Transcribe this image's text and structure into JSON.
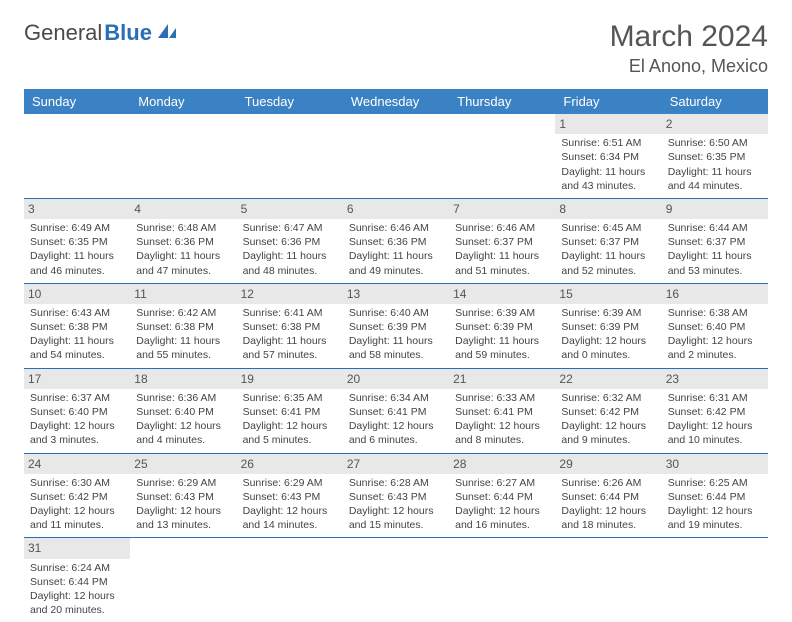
{
  "logo": {
    "general": "General",
    "blue": "Blue"
  },
  "title": "March 2024",
  "location": "El Anono, Mexico",
  "colors": {
    "header_bg": "#3b82c4",
    "header_text": "#ffffff",
    "border": "#2a6fb5",
    "daynum_bg": "#e8e8e8",
    "text": "#444444",
    "logo_gray": "#4a4a4a",
    "logo_blue": "#2a6fb5"
  },
  "weekdays": [
    "Sunday",
    "Monday",
    "Tuesday",
    "Wednesday",
    "Thursday",
    "Friday",
    "Saturday"
  ],
  "weeks": [
    [
      null,
      null,
      null,
      null,
      null,
      {
        "n": "1",
        "sr": "Sunrise: 6:51 AM",
        "ss": "Sunset: 6:34 PM",
        "dl": "Daylight: 11 hours and 43 minutes."
      },
      {
        "n": "2",
        "sr": "Sunrise: 6:50 AM",
        "ss": "Sunset: 6:35 PM",
        "dl": "Daylight: 11 hours and 44 minutes."
      }
    ],
    [
      {
        "n": "3",
        "sr": "Sunrise: 6:49 AM",
        "ss": "Sunset: 6:35 PM",
        "dl": "Daylight: 11 hours and 46 minutes."
      },
      {
        "n": "4",
        "sr": "Sunrise: 6:48 AM",
        "ss": "Sunset: 6:36 PM",
        "dl": "Daylight: 11 hours and 47 minutes."
      },
      {
        "n": "5",
        "sr": "Sunrise: 6:47 AM",
        "ss": "Sunset: 6:36 PM",
        "dl": "Daylight: 11 hours and 48 minutes."
      },
      {
        "n": "6",
        "sr": "Sunrise: 6:46 AM",
        "ss": "Sunset: 6:36 PM",
        "dl": "Daylight: 11 hours and 49 minutes."
      },
      {
        "n": "7",
        "sr": "Sunrise: 6:46 AM",
        "ss": "Sunset: 6:37 PM",
        "dl": "Daylight: 11 hours and 51 minutes."
      },
      {
        "n": "8",
        "sr": "Sunrise: 6:45 AM",
        "ss": "Sunset: 6:37 PM",
        "dl": "Daylight: 11 hours and 52 minutes."
      },
      {
        "n": "9",
        "sr": "Sunrise: 6:44 AM",
        "ss": "Sunset: 6:37 PM",
        "dl": "Daylight: 11 hours and 53 minutes."
      }
    ],
    [
      {
        "n": "10",
        "sr": "Sunrise: 6:43 AM",
        "ss": "Sunset: 6:38 PM",
        "dl": "Daylight: 11 hours and 54 minutes."
      },
      {
        "n": "11",
        "sr": "Sunrise: 6:42 AM",
        "ss": "Sunset: 6:38 PM",
        "dl": "Daylight: 11 hours and 55 minutes."
      },
      {
        "n": "12",
        "sr": "Sunrise: 6:41 AM",
        "ss": "Sunset: 6:38 PM",
        "dl": "Daylight: 11 hours and 57 minutes."
      },
      {
        "n": "13",
        "sr": "Sunrise: 6:40 AM",
        "ss": "Sunset: 6:39 PM",
        "dl": "Daylight: 11 hours and 58 minutes."
      },
      {
        "n": "14",
        "sr": "Sunrise: 6:39 AM",
        "ss": "Sunset: 6:39 PM",
        "dl": "Daylight: 11 hours and 59 minutes."
      },
      {
        "n": "15",
        "sr": "Sunrise: 6:39 AM",
        "ss": "Sunset: 6:39 PM",
        "dl": "Daylight: 12 hours and 0 minutes."
      },
      {
        "n": "16",
        "sr": "Sunrise: 6:38 AM",
        "ss": "Sunset: 6:40 PM",
        "dl": "Daylight: 12 hours and 2 minutes."
      }
    ],
    [
      {
        "n": "17",
        "sr": "Sunrise: 6:37 AM",
        "ss": "Sunset: 6:40 PM",
        "dl": "Daylight: 12 hours and 3 minutes."
      },
      {
        "n": "18",
        "sr": "Sunrise: 6:36 AM",
        "ss": "Sunset: 6:40 PM",
        "dl": "Daylight: 12 hours and 4 minutes."
      },
      {
        "n": "19",
        "sr": "Sunrise: 6:35 AM",
        "ss": "Sunset: 6:41 PM",
        "dl": "Daylight: 12 hours and 5 minutes."
      },
      {
        "n": "20",
        "sr": "Sunrise: 6:34 AM",
        "ss": "Sunset: 6:41 PM",
        "dl": "Daylight: 12 hours and 6 minutes."
      },
      {
        "n": "21",
        "sr": "Sunrise: 6:33 AM",
        "ss": "Sunset: 6:41 PM",
        "dl": "Daylight: 12 hours and 8 minutes."
      },
      {
        "n": "22",
        "sr": "Sunrise: 6:32 AM",
        "ss": "Sunset: 6:42 PM",
        "dl": "Daylight: 12 hours and 9 minutes."
      },
      {
        "n": "23",
        "sr": "Sunrise: 6:31 AM",
        "ss": "Sunset: 6:42 PM",
        "dl": "Daylight: 12 hours and 10 minutes."
      }
    ],
    [
      {
        "n": "24",
        "sr": "Sunrise: 6:30 AM",
        "ss": "Sunset: 6:42 PM",
        "dl": "Daylight: 12 hours and 11 minutes."
      },
      {
        "n": "25",
        "sr": "Sunrise: 6:29 AM",
        "ss": "Sunset: 6:43 PM",
        "dl": "Daylight: 12 hours and 13 minutes."
      },
      {
        "n": "26",
        "sr": "Sunrise: 6:29 AM",
        "ss": "Sunset: 6:43 PM",
        "dl": "Daylight: 12 hours and 14 minutes."
      },
      {
        "n": "27",
        "sr": "Sunrise: 6:28 AM",
        "ss": "Sunset: 6:43 PM",
        "dl": "Daylight: 12 hours and 15 minutes."
      },
      {
        "n": "28",
        "sr": "Sunrise: 6:27 AM",
        "ss": "Sunset: 6:44 PM",
        "dl": "Daylight: 12 hours and 16 minutes."
      },
      {
        "n": "29",
        "sr": "Sunrise: 6:26 AM",
        "ss": "Sunset: 6:44 PM",
        "dl": "Daylight: 12 hours and 18 minutes."
      },
      {
        "n": "30",
        "sr": "Sunrise: 6:25 AM",
        "ss": "Sunset: 6:44 PM",
        "dl": "Daylight: 12 hours and 19 minutes."
      }
    ],
    [
      {
        "n": "31",
        "sr": "Sunrise: 6:24 AM",
        "ss": "Sunset: 6:44 PM",
        "dl": "Daylight: 12 hours and 20 minutes."
      },
      null,
      null,
      null,
      null,
      null,
      null
    ]
  ]
}
